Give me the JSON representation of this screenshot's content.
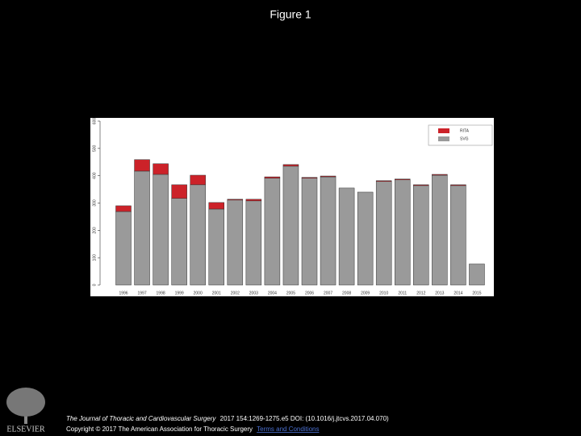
{
  "header": {
    "title": "Figure 1"
  },
  "chart_data": {
    "type": "bar",
    "stacked": true,
    "categories": [
      "1996",
      "1997",
      "1998",
      "1999",
      "2000",
      "2001",
      "2002",
      "2003",
      "2004",
      "2005",
      "2006",
      "2007",
      "2008",
      "2009",
      "2010",
      "2011",
      "2012",
      "2013",
      "2014",
      "2015"
    ],
    "series": [
      {
        "name": "SVG",
        "color": "#9a9a9a",
        "values": [
          269,
          417,
          405,
          317,
          367,
          278,
          311,
          308,
          391,
          435,
          391,
          396,
          355,
          340,
          379,
          385,
          364,
          402,
          364,
          77
        ]
      },
      {
        "name": "RITA",
        "color": "#cc2229",
        "values": [
          21,
          42,
          39,
          50,
          35,
          24,
          3,
          6,
          5,
          6,
          3,
          3,
          0,
          0,
          3,
          3,
          3,
          3,
          3,
          0
        ]
      }
    ],
    "ylim": [
      0,
      600
    ],
    "yticks": [
      0,
      100,
      200,
      300,
      400,
      500,
      600
    ],
    "legend": "top-right"
  },
  "footer": {
    "journal": "The Journal of Thoracic and Cardiovascular Surgery",
    "details": "2017 154:1269-1275.e5 DOI: (10.1016/j.jtcvs.2017.04.070)",
    "copyright": "Copyright © 2017 The American Association for Thoracic Surgery",
    "link": "Terms and Conditions"
  },
  "logo": {
    "text": "ELSEVIER"
  }
}
